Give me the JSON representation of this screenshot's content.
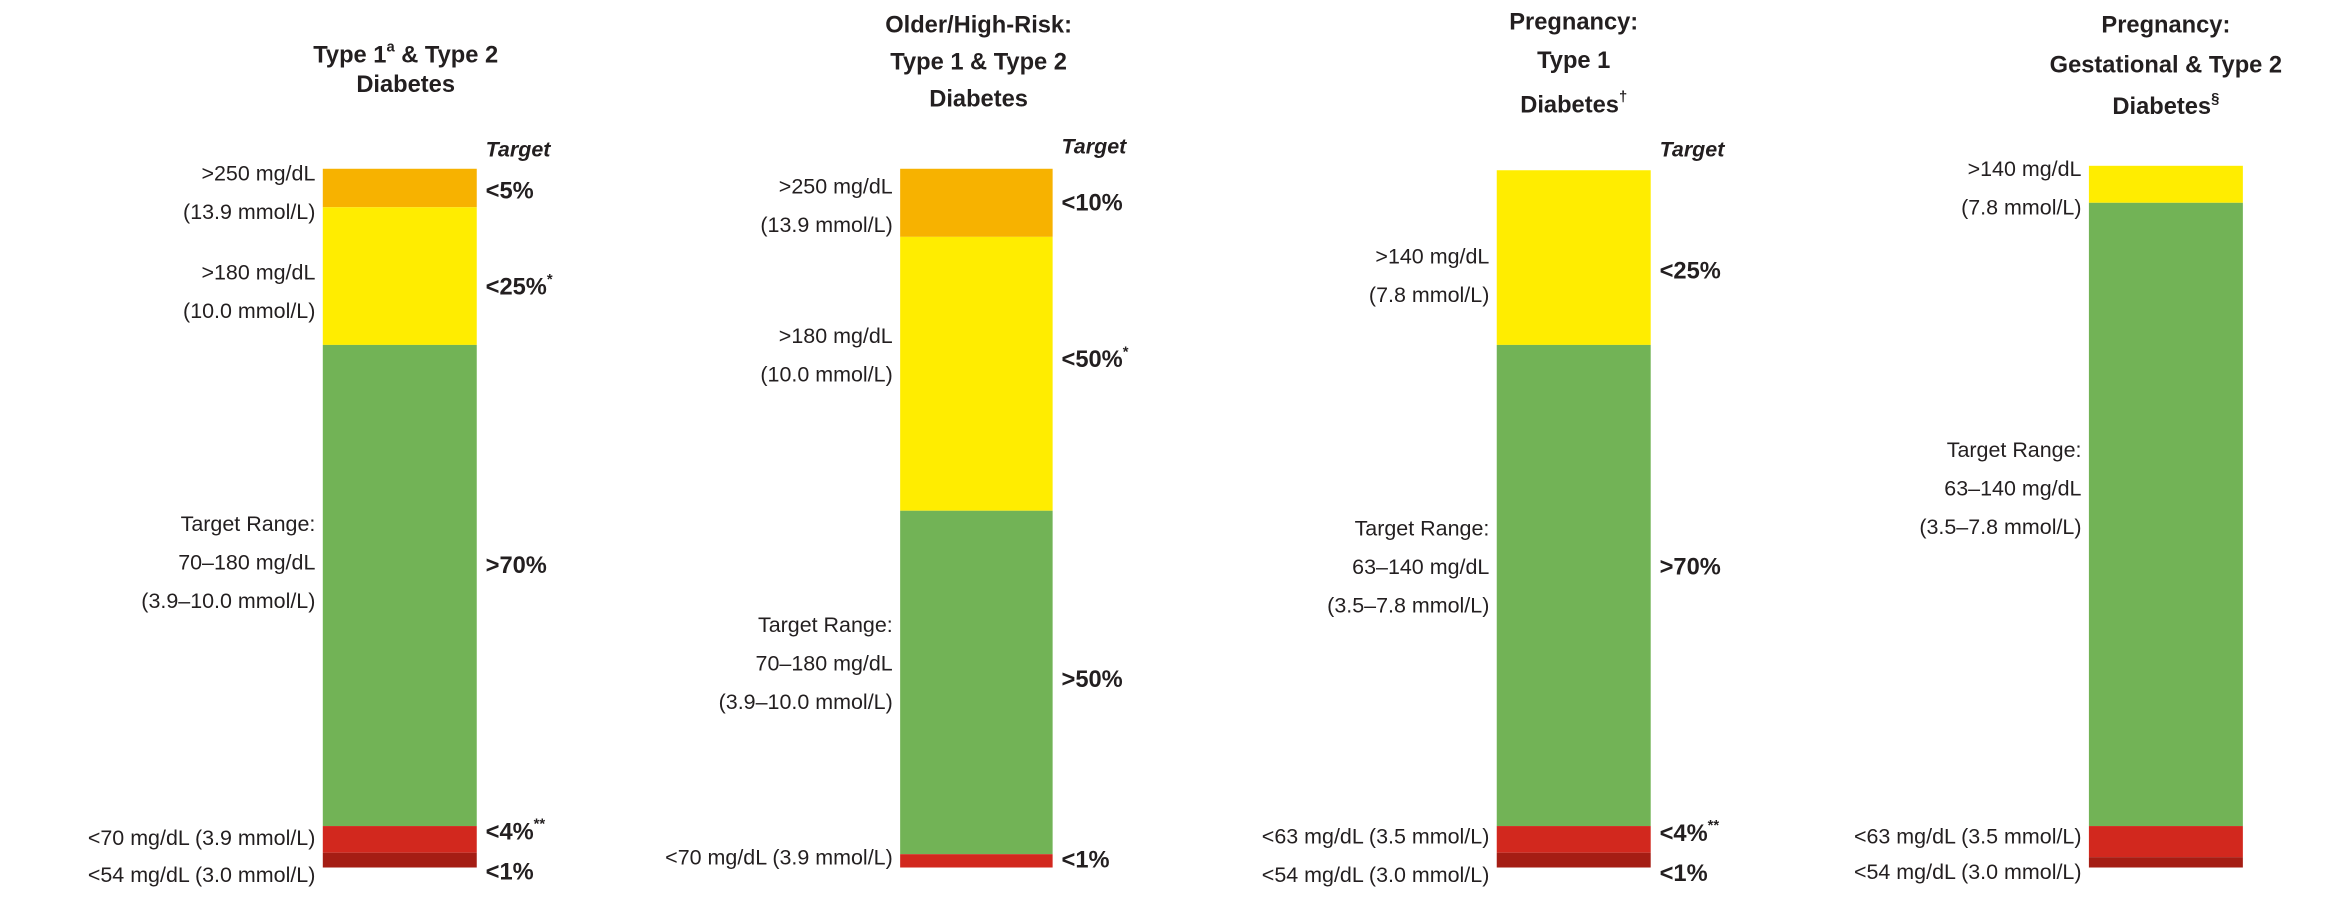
{
  "panels": [
    {
      "title": [
        {
          "text": "Type 1",
          "sup": "a",
          "after": " & Type 2"
        },
        {
          "text": "Diabetes"
        }
      ],
      "target_header": "Target",
      "segments": [
        {
          "color": "#f7b200",
          "label": [
            ">250 mg/dL",
            "(13.9 mmol/L)"
          ],
          "target": "<5%"
        },
        {
          "color": "#ffed00",
          "label": [
            ">180 mg/dL",
            "(10.0 mmol/L)"
          ],
          "target": "<25%",
          "target_sup": "*"
        },
        {
          "color": "#72b356",
          "label": [
            "Target Range:",
            "70–180 mg/dL",
            "(3.9–10.0 mmol/L)"
          ],
          "target": ">70%"
        },
        {
          "color": "#d2281e",
          "label": [
            "<70 mg/dL (3.9 mmol/L)"
          ],
          "target": "<4%",
          "target_sup": "**"
        },
        {
          "color": "#a51d14",
          "label": [
            "<54 mg/dL (3.0 mmol/L)"
          ],
          "target": "<1%"
        }
      ]
    },
    {
      "title": [
        {
          "text": "Older/High-Risk:"
        },
        {
          "text": "Type 1 & Type 2"
        },
        {
          "text": "Diabetes"
        }
      ],
      "target_header": "Target",
      "segments": [
        {
          "color": "#f7b200",
          "label": [
            ">250 mg/dL",
            "(13.9 mmol/L)"
          ],
          "target": "<10%"
        },
        {
          "color": "#ffed00",
          "label": [
            ">180 mg/dL",
            "(10.0 mmol/L)"
          ],
          "target": "<50%",
          "target_sup": "*"
        },
        {
          "color": "#72b356",
          "label": [
            "Target Range:",
            "70–180 mg/dL",
            "(3.9–10.0 mmol/L)"
          ],
          "target": ">50%"
        },
        {
          "color": "#d2281e",
          "label": [
            "<70 mg/dL (3.9 mmol/L)"
          ],
          "target": "<1%"
        }
      ]
    },
    {
      "title": [
        {
          "text": "Pregnancy:"
        },
        {
          "text": "Type 1"
        },
        {
          "text": "Diabetes",
          "sup": "†"
        }
      ],
      "target_header": "Target",
      "segments": [
        {
          "color": "#ffed00",
          "label": [
            ">140 mg/dL",
            "(7.8 mmol/L)"
          ],
          "target": "<25%"
        },
        {
          "color": "#72b356",
          "label": [
            "Target Range:",
            "63–140 mg/dL",
            "(3.5–7.8 mmol/L)"
          ],
          "target": ">70%"
        },
        {
          "color": "#d2281e",
          "label": [
            "<63 mg/dL (3.5 mmol/L)"
          ],
          "target": "<4%",
          "target_sup": "**"
        },
        {
          "color": "#a51d14",
          "label": [
            "<54 mg/dL (3.0 mmol/L)"
          ],
          "target": "<1%"
        }
      ]
    },
    {
      "title": [
        {
          "text": "Pregnancy:"
        },
        {
          "text": "Gestational & Type 2"
        },
        {
          "text": "Diabetes",
          "sup": "§"
        }
      ],
      "segments": [
        {
          "color": "#ffed00",
          "label": [
            ">140 mg/dL",
            "(7.8 mmol/L)"
          ]
        },
        {
          "color": "#72b356",
          "label": [
            "Target Range:",
            "63–140 mg/dL",
            "(3.5–7.8 mmol/L)"
          ]
        },
        {
          "color": "#d2281e",
          "label": [
            "<63 mg/dL (3.5 mmol/L)"
          ]
        },
        {
          "color": "#a51d14",
          "label": [
            "<54 mg/dL (3.0 mmol/L)"
          ]
        }
      ]
    }
  ]
}
